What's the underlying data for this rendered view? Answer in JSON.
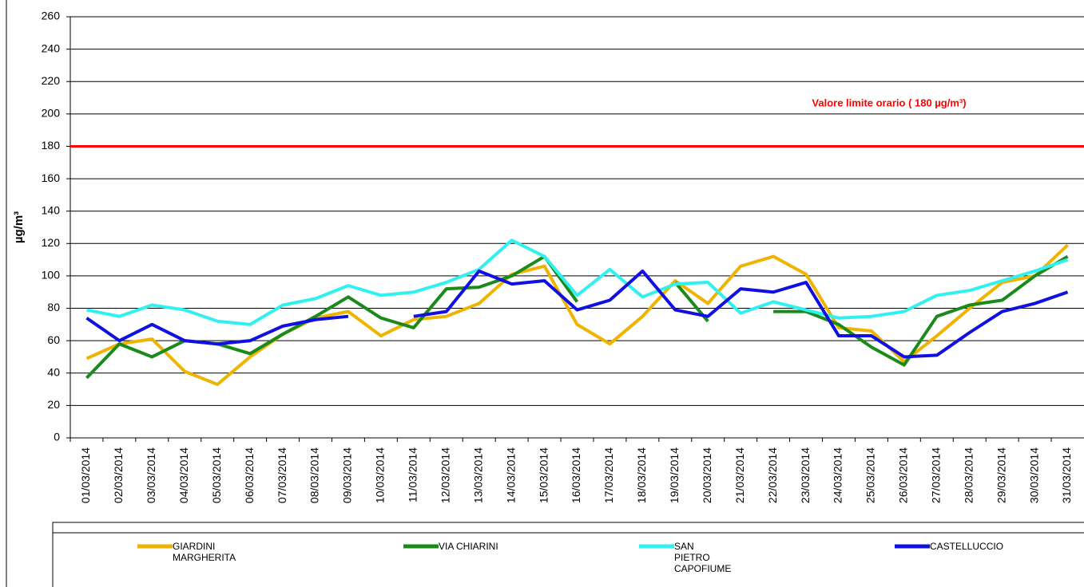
{
  "chart_data": {
    "type": "line",
    "y_label": "µg/m³",
    "annotation": "Valore limite orario ( 180 µg/m³)",
    "limit": 180,
    "limit_color": "#ff0000",
    "categories": [
      "01/03/2014",
      "02/03/2014",
      "03/03/2014",
      "04/03/2014",
      "05/03/2014",
      "06/03/2014",
      "07/03/2014",
      "08/03/2014",
      "09/03/2014",
      "10/03/2014",
      "11/03/2014",
      "12/03/2014",
      "13/03/2014",
      "14/03/2014",
      "15/03/2014",
      "16/03/2014",
      "17/03/2014",
      "18/03/2014",
      "19/03/2014",
      "20/03/2014",
      "21/03/2014",
      "22/03/2014",
      "23/03/2014",
      "24/03/2014",
      "25/03/2014",
      "26/03/2014",
      "27/03/2014",
      "28/03/2014",
      "29/03/2014",
      "30/03/2014",
      "31/03/2014"
    ],
    "series": [
      {
        "name": "GIARDINI MARGHERITA",
        "color": "#f0b400",
        "values": [
          49,
          58,
          61,
          41,
          33,
          50,
          64,
          74,
          78,
          63,
          73,
          75,
          83,
          101,
          106,
          70,
          58,
          75,
          97,
          83,
          106,
          112,
          101,
          68,
          66,
          47,
          63,
          80,
          96,
          100,
          119
        ]
      },
      {
        "name": "VIA CHIARINI",
        "color": "#1a8a1a",
        "values": [
          37,
          58,
          50,
          60,
          58,
          52,
          64,
          75,
          87,
          74,
          68,
          92,
          93,
          100,
          112,
          84,
          null,
          null,
          96,
          72,
          null,
          78,
          78,
          70,
          56,
          45,
          75,
          82,
          85,
          100,
          112
        ]
      },
      {
        "name": "SAN PIETRO CAPOFIUME",
        "color": "#33f0f0",
        "values": [
          79,
          75,
          82,
          79,
          72,
          70,
          82,
          86,
          94,
          88,
          90,
          96,
          104,
          122,
          112,
          88,
          104,
          87,
          95,
          96,
          77,
          84,
          79,
          74,
          75,
          78,
          88,
          91,
          97,
          103,
          110
        ]
      },
      {
        "name": "CASTELLUCCIO",
        "color": "#1010e0",
        "values": [
          74,
          60,
          70,
          60,
          58,
          60,
          69,
          73,
          75,
          null,
          75,
          78,
          103,
          95,
          97,
          79,
          85,
          103,
          79,
          75,
          92,
          90,
          96,
          63,
          63,
          50,
          51,
          65,
          78,
          83,
          90
        ]
      }
    ],
    "ylim": [
      0,
      260
    ],
    "yticks": [
      0,
      20,
      40,
      60,
      80,
      100,
      120,
      140,
      160,
      180,
      200,
      220,
      240,
      260
    ],
    "grid": true
  }
}
